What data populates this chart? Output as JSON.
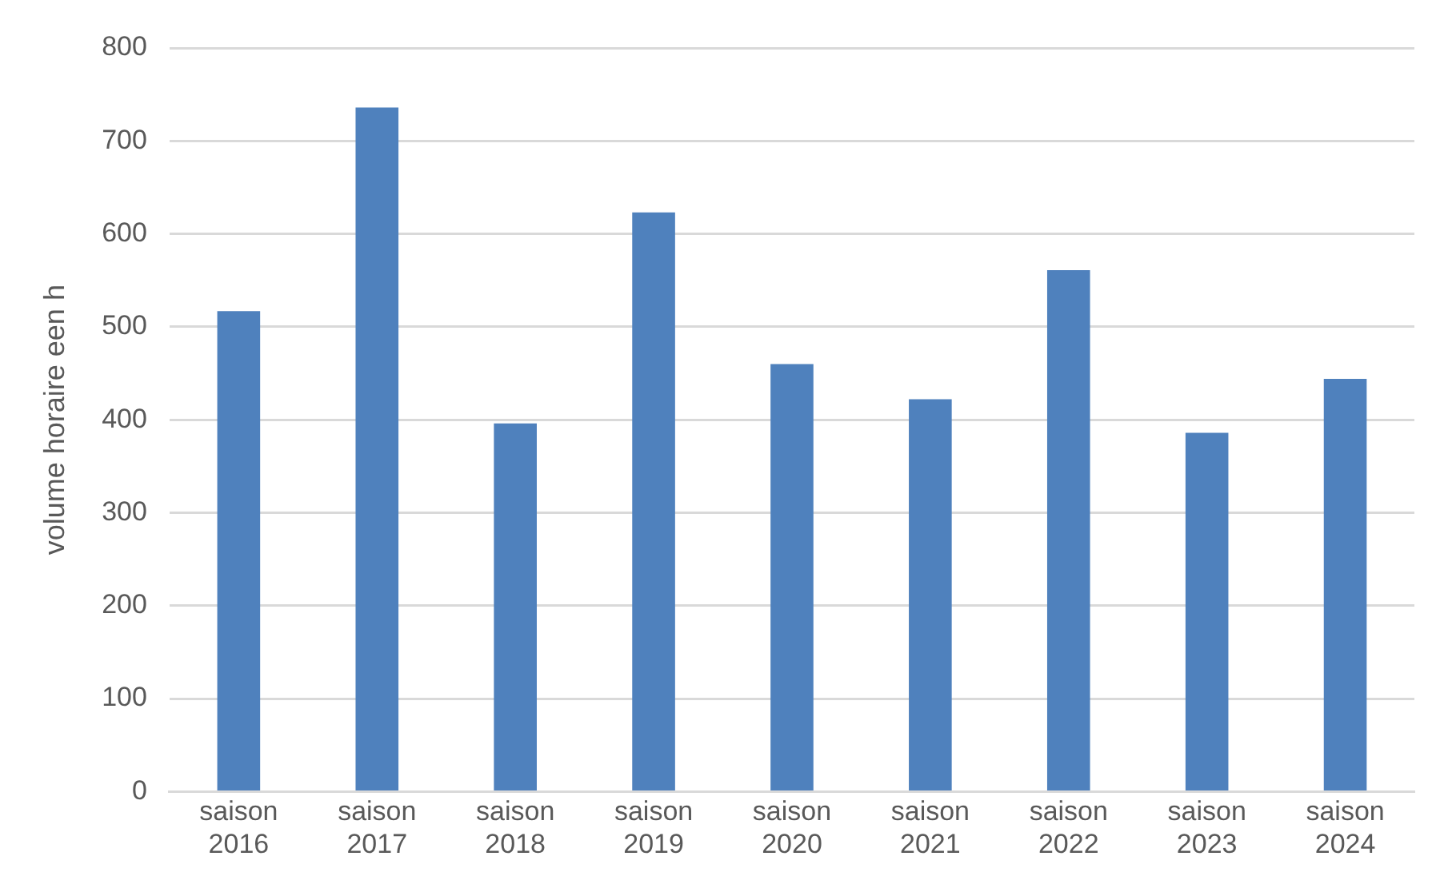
{
  "chart_data": {
    "type": "bar",
    "ylabel": "volume horaire een h",
    "categories": [
      "saison 2016",
      "saison 2017",
      "saison 2018",
      "saison 2019",
      "saison 2020",
      "saison 2021",
      "saison 2022",
      "saison 2023",
      "saison 2024"
    ],
    "values": [
      517,
      736,
      396,
      623,
      460,
      422,
      561,
      386,
      444
    ],
    "color": "#4f81bd",
    "ylim": [
      0,
      800
    ],
    "yticks": [
      0,
      100,
      200,
      300,
      400,
      500,
      600,
      700,
      800
    ],
    "grid": "y",
    "legend": false
  }
}
